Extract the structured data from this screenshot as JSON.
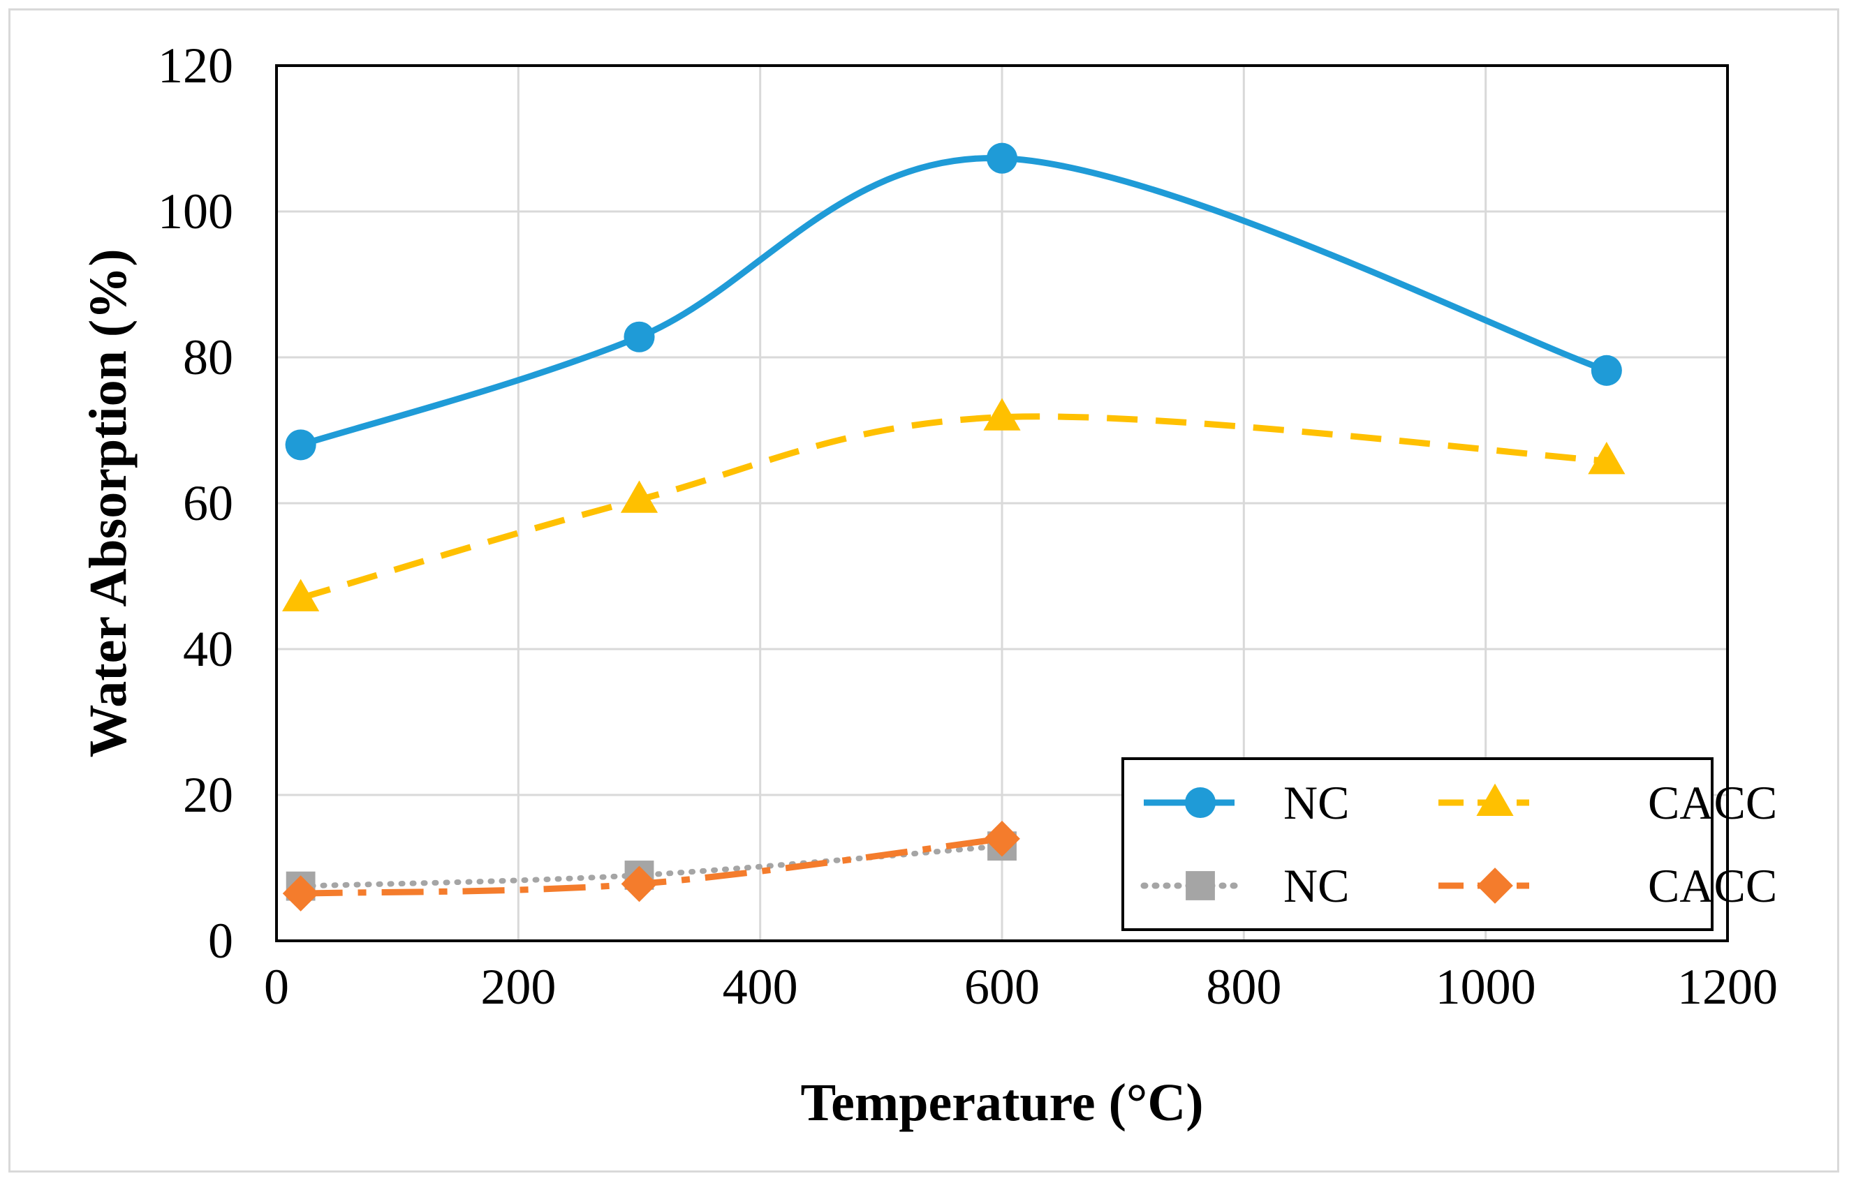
{
  "chart_data": {
    "type": "line",
    "title": "",
    "xlabel": "Temperature (°C)",
    "ylabel": "Water Absorption (%)",
    "xlim": [
      0,
      1200
    ],
    "ylim": [
      0,
      120
    ],
    "xticks": [
      0,
      200,
      400,
      600,
      800,
      1000,
      1200
    ],
    "yticks": [
      0,
      20,
      40,
      60,
      80,
      100,
      120
    ],
    "grid": true,
    "legend_position": "bottom-right",
    "series": [
      {
        "name": "NC",
        "color": "#1f9bd7",
        "style": "solid",
        "marker": "circle",
        "smooth": true,
        "x": [
          20,
          300,
          600,
          1100
        ],
        "y": [
          68,
          82.8,
          107.3,
          78.2
        ]
      },
      {
        "name": "CACC",
        "color": "#ffc000",
        "style": "dashed",
        "marker": "triangle",
        "smooth": true,
        "x": [
          20,
          300,
          600,
          1100
        ],
        "y": [
          47,
          60.5,
          71.8,
          65.8
        ]
      },
      {
        "name": "NC",
        "color": "#a5a5a5",
        "style": "dotted",
        "marker": "square",
        "smooth": true,
        "x": [
          20,
          300,
          600
        ],
        "y": [
          7.5,
          9,
          13
        ]
      },
      {
        "name": "CACC",
        "color": "#f47c2c",
        "style": "longdash",
        "marker": "diamond",
        "smooth": true,
        "x": [
          20,
          300,
          600
        ],
        "y": [
          6.5,
          7.8,
          14
        ]
      }
    ]
  }
}
